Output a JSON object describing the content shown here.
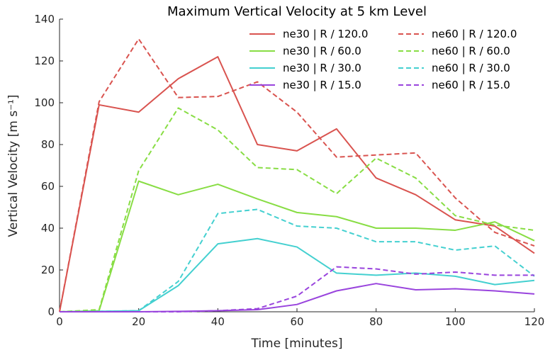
{
  "chart_data": {
    "type": "line",
    "title": "Maximum Vertical Velocity at 5 km Level",
    "xlabel": "Time [minutes]",
    "ylabel": "Vertical Velocity [m s⁻¹]",
    "xlim": [
      0,
      120
    ],
    "ylim": [
      0,
      140
    ],
    "xticks": [
      "0",
      "20",
      "40",
      "60",
      "80",
      "100",
      "120"
    ],
    "yticks": [
      "0",
      "20",
      "40",
      "60",
      "80",
      "100",
      "120",
      "140"
    ],
    "grid": false,
    "legend_position": "top-right",
    "x": [
      0,
      10,
      20,
      30,
      40,
      50,
      60,
      70,
      80,
      90,
      100,
      110,
      120
    ],
    "series": [
      {
        "name": "ne30 | R / 120.0",
        "color": "#d9534f",
        "dash": "solid",
        "values": [
          0,
          99,
          95.5,
          111.5,
          122,
          80,
          77,
          87.5,
          64,
          56,
          44,
          41,
          28
        ]
      },
      {
        "name": "ne30 | R / 60.0",
        "color": "#88dd44",
        "dash": "solid",
        "values": [
          0,
          0.5,
          62.5,
          56,
          61,
          54,
          47.5,
          45.5,
          40,
          40,
          39,
          43,
          34
        ]
      },
      {
        "name": "ne30 | R / 30.0",
        "color": "#44d0d0",
        "dash": "solid",
        "values": [
          0,
          0.2,
          0.5,
          12.5,
          32.5,
          35,
          31,
          18.5,
          17.5,
          18.5,
          17,
          13,
          15
        ]
      },
      {
        "name": "ne30 | R / 15.0",
        "color": "#9944dd",
        "dash": "solid",
        "values": [
          0,
          0,
          0,
          0.2,
          0.5,
          1,
          3.5,
          10,
          13.5,
          10.5,
          11,
          10,
          8.5
        ]
      },
      {
        "name": "ne60 | R / 120.0",
        "color": "#d9534f",
        "dash": "dashed",
        "values": [
          0,
          100.5,
          130.5,
          102.5,
          103,
          110,
          95.5,
          74,
          75,
          76,
          54.5,
          38,
          31.5
        ]
      },
      {
        "name": "ne60 | R / 60.0",
        "color": "#88dd44",
        "dash": "dashed",
        "values": [
          0,
          1,
          67.5,
          97.5,
          87,
          69,
          68,
          56.5,
          73.5,
          64,
          46,
          41.5,
          39
        ]
      },
      {
        "name": "ne60 | R / 30.0",
        "color": "#44d0d0",
        "dash": "dashed",
        "values": [
          0,
          0.2,
          0.5,
          14.5,
          47,
          49,
          41,
          40,
          33.5,
          33.5,
          29.5,
          31.5,
          17
        ]
      },
      {
        "name": "ne60 | R / 15.0",
        "color": "#9944dd",
        "dash": "dashed",
        "values": [
          0,
          0,
          0,
          0,
          0.5,
          1.5,
          7.5,
          21.5,
          20.5,
          18,
          19,
          17.5,
          17.5
        ]
      }
    ]
  }
}
